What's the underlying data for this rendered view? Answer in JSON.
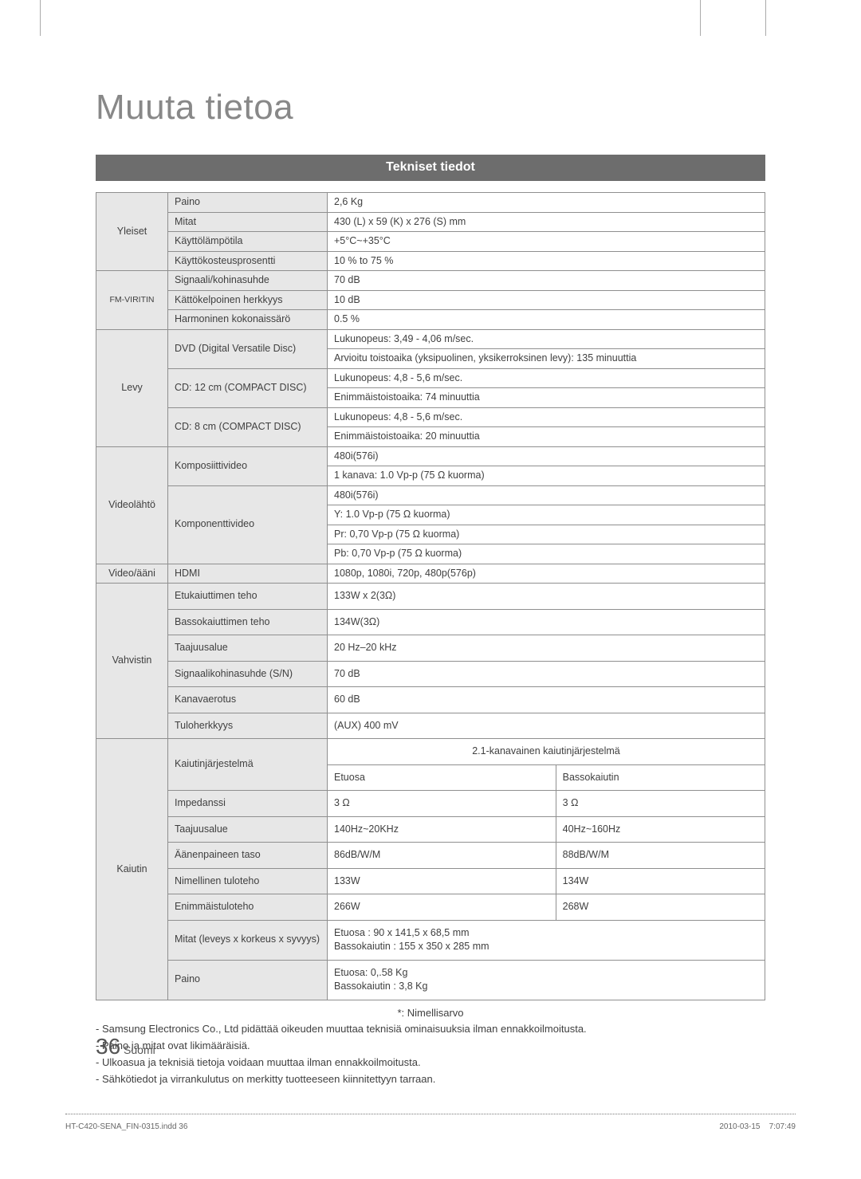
{
  "page": {
    "title": "Muuta tietoa",
    "section": "Tekniset tiedot",
    "page_number": "36",
    "page_lang": "Suomi",
    "footer_left": "HT-C420-SENA_FIN-0315.indd   36",
    "footer_date": "2010-03-15",
    "footer_time": "7:07:49"
  },
  "notes": {
    "nominal": "*: Nimellisarvo",
    "n1": "- Samsung Electronics Co., Ltd pidättää oikeuden muuttaa teknisiä ominaisuuksia ilman ennakkoilmoitusta.",
    "n2": "- Paino ja mitat ovat likimääräisiä.",
    "n3": "- Ulkoasua ja teknisiä tietoja voidaan muuttaa ilman ennakkoilmoitusta.",
    "n4": "- Sähkötiedot ja virrankulutus on merkitty tuotteeseen kiinnitettyyn tarraan."
  },
  "t": {
    "yleiset": {
      "cat": "Yleiset",
      "r1l": "Paino",
      "r1v": "2,6 Kg",
      "r2l": "Mitat",
      "r2v": "430 (L) x 59 (K) x 276 (S) mm",
      "r3l": "Käyttölämpötila",
      "r3v": "+5°C~+35°C",
      "r4l": "Käyttökosteusprosentti",
      "r4v": "10 % to 75 %"
    },
    "fm": {
      "cat": "FM-VIRITIN",
      "r1l": "Signaali/kohinasuhde",
      "r1v": "70 dB",
      "r2l": "Kättökelpoinen herkkyys",
      "r2v": "10 dB",
      "r3l": "Harmoninen kokonaissärö",
      "r3v": "0.5 %"
    },
    "levy": {
      "cat": "Levy",
      "r1l": "DVD (Digital Versatile Disc)",
      "r1v1": "Lukunopeus: 3,49 - 4,06 m/sec.",
      "r1v2": "Arvioitu toistoaika (yksipuolinen, yksikerroksinen levy): 135 minuuttia",
      "r2l": "CD: 12 cm (COMPACT DISC)",
      "r2v1": "Lukunopeus: 4,8 - 5,6 m/sec.",
      "r2v2": "Enimmäistoistoaika: 74 minuuttia",
      "r3l": "CD: 8 cm (COMPACT DISC)",
      "r3v1": "Lukunopeus: 4,8 - 5,6 m/sec.",
      "r3v2": "Enimmäistoistoaika: 20 minuuttia"
    },
    "video": {
      "cat": "Videolähtö",
      "r1l": "Komposiittivideo",
      "r1v1": "480i(576i)",
      "r1v2": "1 kanava: 1.0 Vp-p (75 Ω kuorma)",
      "r2l": "Komponenttivideo",
      "r2v1": "480i(576i)",
      "r2v2": "Y: 1.0 Vp-p (75 Ω kuorma)",
      "r2v3": "Pr: 0,70 Vp-p (75 Ω kuorma)",
      "r2v4": "Pb: 0,70 Vp-p (75 Ω kuorma)"
    },
    "va": {
      "cat": "Video/ääni",
      "l": "HDMI",
      "v": "1080p, 1080i, 720p, 480p(576p)"
    },
    "amp": {
      "cat": "Vahvistin",
      "r1l": "Etukaiuttimen teho",
      "r1v": "133W x 2(3Ω)",
      "r2l": "Bassokaiuttimen teho",
      "r2v": "134W(3Ω)",
      "r3l": "Taajuusalue",
      "r3v": "20 Hz–20 kHz",
      "r4l": "Signaalikohinasuhde (S/N)",
      "r4v": "70 dB",
      "r5l": "Kanavaerotus",
      "r5v": "60 dB",
      "r6l": "Tuloherkkyys",
      "r6v": "(AUX) 400 mV"
    },
    "sp": {
      "cat": "Kaiutin",
      "syslabel": "Kaiutinjärjestelmä",
      "sysval": "2.1-kanavainen kaiutinjärjestelmä",
      "h1": "Etuosa",
      "h2": "Bassokaiutin",
      "r1l": "Impedanssi",
      "r1a": "3 Ω",
      "r1b": "3 Ω",
      "r2l": "Taajuusalue",
      "r2a": "140Hz~20KHz",
      "r2b": "40Hz~160Hz",
      "r3l": "Äänenpaineen taso",
      "r3a": "86dB/W/M",
      "r3b": "88dB/W/M",
      "r4l": "Nimellinen tuloteho",
      "r4a": "133W",
      "r4b": "134W",
      "r5l": "Enimmäistuloteho",
      "r5a": "266W",
      "r5b": "268W",
      "r6l": "Mitat (leveys x korkeus x syvyys)",
      "r6v": "Etuosa : 90 x 141,5 x 68,5 mm\nBassokaiutin : 155 x 350 x 285 mm",
      "r7l": "Paino",
      "r7v": "Etuosa: 0,.58 Kg\nBassokaiutin : 3,8 Kg"
    }
  },
  "colors": {
    "bar": "#6d6d6d",
    "cell_gray": "#e7e7e7",
    "border": "#8f8f8f",
    "text": "#404040"
  }
}
